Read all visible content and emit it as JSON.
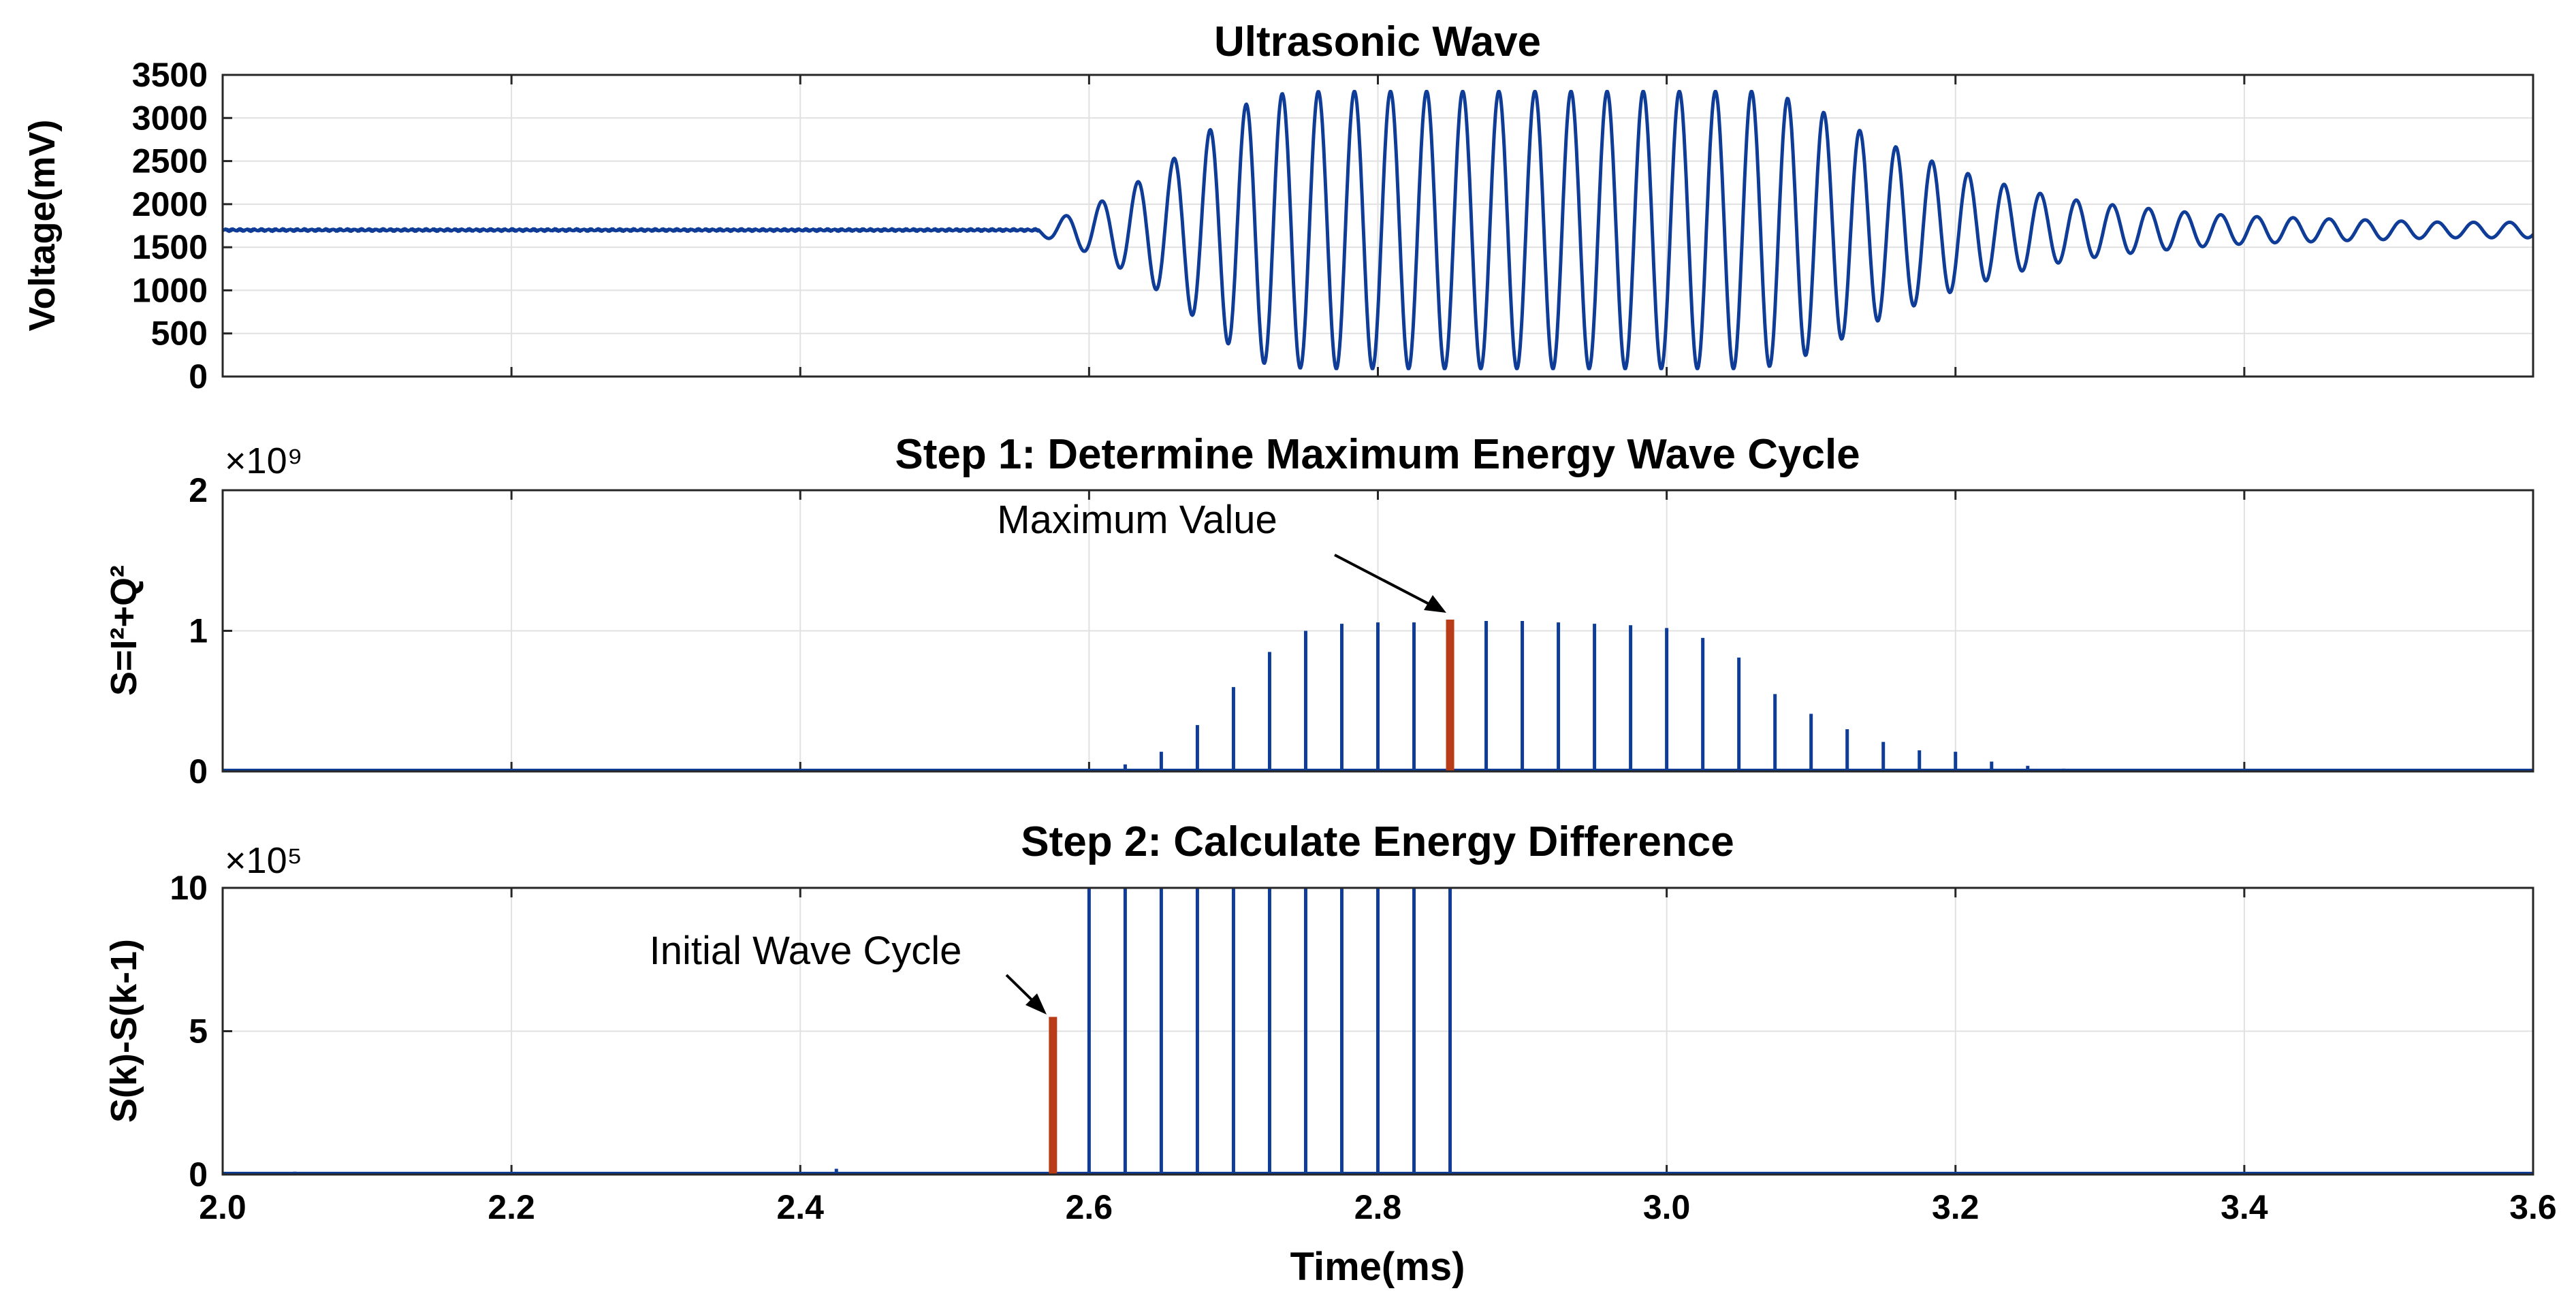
{
  "chart_data": [
    {
      "type": "line",
      "title": "Ultrasonic Wave",
      "ylabel": "Voltage(mV)",
      "xlim": [
        2.0,
        3.6
      ],
      "ylim": [
        0,
        3500
      ],
      "yticks": [
        0,
        500,
        1000,
        1500,
        2000,
        2500,
        3000,
        3500
      ],
      "grid": true,
      "series_color": "#0e3c96",
      "signal": {
        "baseline": 1700,
        "cycle_period_ms": 0.025,
        "onset_ms": 2.565,
        "cycles_above_onset": 40,
        "amplitude_by_cycle": [
          60,
          200,
          380,
          620,
          900,
          1250,
          1530,
          1600,
          1610,
          1610,
          1610,
          1610,
          1610,
          1610,
          1610,
          1610,
          1610,
          1610,
          1610,
          1610,
          1610,
          1500,
          1320,
          1100,
          920,
          760,
          620,
          500,
          400,
          330,
          280,
          240,
          200,
          170,
          150,
          140,
          125,
          115,
          100,
          90
        ],
        "noise_amplitude": 15
      }
    },
    {
      "type": "bar",
      "title": "Step 1: Determine Maximum Energy Wave Cycle",
      "ylabel": "S=I²+Q²",
      "multiplier": "×10⁹",
      "xlim": [
        2.0,
        3.6
      ],
      "ylim": [
        0,
        2
      ],
      "yticks": [
        0,
        1,
        2
      ],
      "grid": true,
      "series_color": "#0e3c96",
      "highlight_color": "#b83c18",
      "x": [
        2.625,
        2.65,
        2.675,
        2.7,
        2.725,
        2.75,
        2.775,
        2.8,
        2.825,
        2.85,
        2.875,
        2.9,
        2.925,
        2.95,
        2.975,
        3.0,
        3.025,
        3.05,
        3.075,
        3.1,
        3.125,
        3.15,
        3.175,
        3.2,
        3.225,
        3.25,
        3.275,
        3.3,
        3.325,
        3.35,
        3.375,
        3.4,
        3.425,
        3.45,
        3.475,
        3.5,
        3.525,
        3.55,
        3.575
      ],
      "values": [
        0.05,
        0.14,
        0.33,
        0.6,
        0.85,
        1.0,
        1.05,
        1.06,
        1.06,
        1.08,
        1.07,
        1.07,
        1.06,
        1.05,
        1.04,
        1.02,
        0.95,
        0.81,
        0.55,
        0.41,
        0.3,
        0.21,
        0.15,
        0.14,
        0.07,
        0.04,
        0.02,
        0.015,
        0.012,
        0.01,
        0.008,
        0.006,
        0.005,
        0.004,
        0.003,
        0.003,
        0.002,
        0.002,
        0.002
      ],
      "highlight_index": 9,
      "annotation": {
        "text": "Maximum Value",
        "x": 2.85
      }
    },
    {
      "type": "bar",
      "title": "Step 2: Calculate Energy Difference",
      "ylabel": "S(k)-S(k-1)",
      "multiplier": "×10⁵",
      "xlabel": "Time(ms)",
      "xlim": [
        2.0,
        3.6
      ],
      "ylim": [
        0,
        10
      ],
      "yticks": [
        0,
        5,
        10
      ],
      "xticks": [
        "2.0",
        "2.2",
        "2.4",
        "2.6",
        "2.8",
        "3.0",
        "3.2",
        "3.4",
        "3.6"
      ],
      "grid": true,
      "series_color": "#0e3c96",
      "highlight_color": "#b83c18",
      "x": [
        2.05,
        2.1,
        2.25,
        2.425,
        2.575,
        2.6,
        2.625,
        2.65,
        2.675,
        2.7,
        2.725,
        2.75,
        2.775,
        2.8,
        2.825,
        2.85
      ],
      "values": [
        0.1,
        0.05,
        0.05,
        0.2,
        5.5,
        10,
        10,
        10,
        10,
        10,
        10,
        10,
        10,
        10,
        10,
        10
      ],
      "highlight_index": 4,
      "annotation": {
        "text": "Initial Wave Cycle",
        "x": 2.575
      }
    }
  ]
}
